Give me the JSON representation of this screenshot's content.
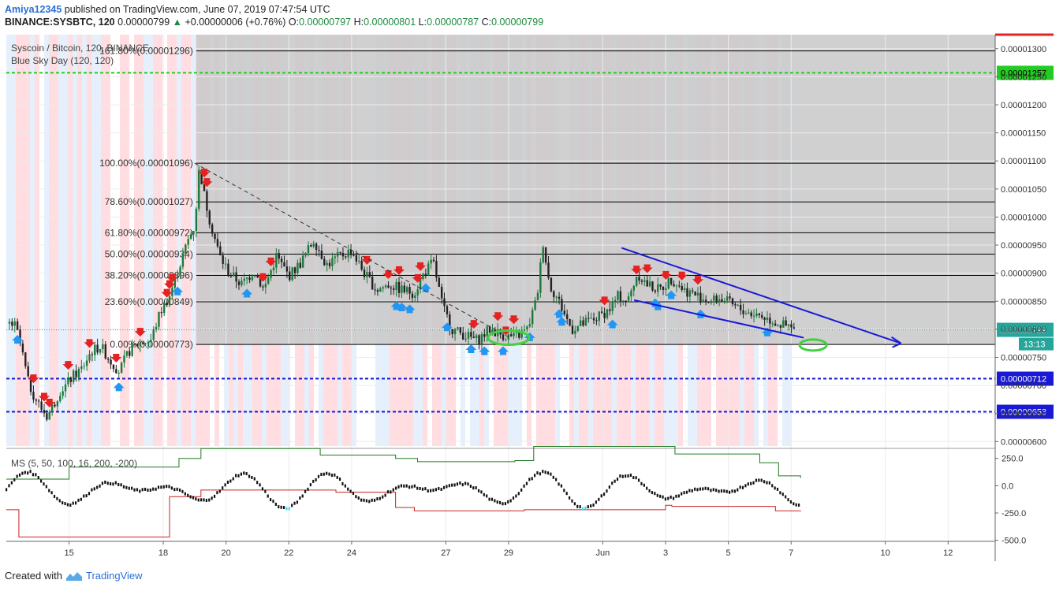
{
  "header": {
    "author": "Amiya12345",
    "published": "published on TradingView.com, June 07, 2019 07:47:54 UTC",
    "symbol": "BINANCE:SYSBTC, 120",
    "last": "0.00000799",
    "change": "+0.00000006 (+0.76%)",
    "o_label": "O:",
    "o": "0.00000797",
    "h_label": "H:",
    "h": "0.00000801",
    "l_label": "L:",
    "l": "0.00000787",
    "c_label": "C:",
    "c": "0.00000799"
  },
  "legend": {
    "title": "Syscoin / Bitcoin, 120, BINANCE",
    "indicator": "Blue Sky Day (120, 120)",
    "oscillator": "MS (5, 50, 100, 16, 200, -200)"
  },
  "footer": {
    "created_with": "Created with",
    "brand": "TradingView"
  },
  "colors": {
    "up_arrow": "#2196f3",
    "down_arrow": "#e52222",
    "fib_line": "#000000",
    "green_level": "#22cc22",
    "blue_level": "#1a1ad6",
    "trend": "#1a1ad6",
    "ellipse": "#3fd13f",
    "gray_zone": "#c8c8c8",
    "last_price": "#26a69a",
    "osc_upper": "#1f7a1f",
    "osc_lower": "#cc2222",
    "osc_signal": "#33ddee"
  },
  "chart_data": {
    "type": "candlestick",
    "price_axis": {
      "range": [
        5.92e-06,
        1.325e-05
      ],
      "ticks": [
        "0.00001300",
        "0.00001250",
        "0.00001200",
        "0.00001150",
        "0.00001100",
        "0.00001050",
        "0.00001000",
        "0.00000950",
        "0.00000900",
        "0.00000850",
        "0.00000800",
        "0.00000750",
        "0.00000700",
        "0.00000650",
        "0.00000600"
      ]
    },
    "date_axis": {
      "range_days": [
        0,
        31.5
      ],
      "ticks": [
        {
          "label": "15",
          "day": 2
        },
        {
          "label": "18",
          "day": 5
        },
        {
          "label": "20",
          "day": 7
        },
        {
          "label": "22",
          "day": 9
        },
        {
          "label": "24",
          "day": 11
        },
        {
          "label": "27",
          "day": 14
        },
        {
          "label": "29",
          "day": 16
        },
        {
          "label": "Jun",
          "day": 19
        },
        {
          "label": "3",
          "day": 21
        },
        {
          "label": "5",
          "day": 23
        },
        {
          "label": "7",
          "day": 25
        },
        {
          "label": "10",
          "day": 28
        },
        {
          "label": "12",
          "day": 30
        }
      ]
    },
    "fib_levels": [
      {
        "label": "161.80%(0.00001296)",
        "value": 1.296e-05
      },
      {
        "label": "100.00%(0.00001096)",
        "value": 1.096e-05
      },
      {
        "label": "78.60%(0.00001027)",
        "value": 1.027e-05
      },
      {
        "label": "61.80%(0.00000972)",
        "value": 9.72e-06
      },
      {
        "label": "50.00%(0.00000934)",
        "value": 9.34e-06
      },
      {
        "label": "38.20%(0.00000896)",
        "value": 8.96e-06
      },
      {
        "label": "23.60%(0.00000849)",
        "value": 8.49e-06
      },
      {
        "label": "0.00%(0.00000773)",
        "value": 7.73e-06
      }
    ],
    "horizontal_levels": [
      {
        "label": "0.00001257",
        "value": 1.257e-05,
        "style": "green"
      },
      {
        "label": "0.00000712",
        "value": 7.12e-06,
        "style": "blue"
      },
      {
        "label": "0.00000653",
        "value": 6.53e-06,
        "style": "blue"
      }
    ],
    "last_price": {
      "label": "0.00000799",
      "value": 7.99e-06
    },
    "countdown": "13:13",
    "price_path": [
      [
        0.1,
        8.1e-06
      ],
      [
        0.3,
        8.05e-06
      ],
      [
        0.5,
        7.6e-06
      ],
      [
        0.7,
        7.05e-06
      ],
      [
        0.9,
        6.8e-06
      ],
      [
        1.1,
        6.6e-06
      ],
      [
        1.3,
        6.45e-06
      ],
      [
        1.5,
        6.65e-06
      ],
      [
        1.7,
        6.9e-06
      ],
      [
        1.9,
        7e-06
      ],
      [
        2.1,
        7.15e-06
      ],
      [
        2.4,
        7.3e-06
      ],
      [
        2.7,
        7.6e-06
      ],
      [
        3.0,
        7.7e-06
      ],
      [
        3.3,
        7.45e-06
      ],
      [
        3.6,
        7.25e-06
      ],
      [
        3.9,
        7.6e-06
      ],
      [
        4.2,
        7.75e-06
      ],
      [
        4.6,
        7.8e-06
      ],
      [
        4.9,
        8.3e-06
      ],
      [
        5.2,
        8.6e-06
      ],
      [
        5.5,
        9.1e-06
      ],
      [
        5.8,
        9.6e-06
      ],
      [
        6.0,
        9.85e-06
      ],
      [
        6.15,
        1.09e-05
      ],
      [
        6.3,
        1.04e-05
      ],
      [
        6.5,
        9.9e-06
      ],
      [
        6.8,
        9.3e-06
      ],
      [
        7.1,
        9e-06
      ],
      [
        7.5,
        8.8e-06
      ],
      [
        7.9,
        9.05e-06
      ],
      [
        8.2,
        8.7e-06
      ],
      [
        8.6,
        9.3e-06
      ],
      [
        9.0,
        8.95e-06
      ],
      [
        9.4,
        9.2e-06
      ],
      [
        9.8,
        9.6e-06
      ],
      [
        10.2,
        9.15e-06
      ],
      [
        10.6,
        9.3e-06
      ],
      [
        11.0,
        9.4e-06
      ],
      [
        11.4,
        9e-06
      ],
      [
        11.8,
        8.7e-06
      ],
      [
        12.2,
        8.8e-06
      ],
      [
        12.6,
        8.7e-06
      ],
      [
        13.0,
        8.65e-06
      ],
      [
        13.3,
        9e-06
      ],
      [
        13.6,
        9.2e-06
      ],
      [
        13.9,
        8.4e-06
      ],
      [
        14.2,
        8e-06
      ],
      [
        14.6,
        7.9e-06
      ],
      [
        15.0,
        7.8e-06
      ],
      [
        15.4,
        8e-06
      ],
      [
        15.8,
        7.9e-06
      ],
      [
        16.2,
        7.85e-06
      ],
      [
        16.6,
        8e-06
      ],
      [
        16.9,
        8.55e-06
      ],
      [
        17.1,
        9.55e-06
      ],
      [
        17.3,
        8.8e-06
      ],
      [
        17.6,
        8.5e-06
      ],
      [
        18.0,
        8e-06
      ],
      [
        18.4,
        8.1e-06
      ],
      [
        18.8,
        8.2e-06
      ],
      [
        19.2,
        8.35e-06
      ],
      [
        19.5,
        8.6e-06
      ],
      [
        19.8,
        8.5e-06
      ],
      [
        20.1,
        9e-06
      ],
      [
        20.4,
        8.8e-06
      ],
      [
        20.8,
        8.7e-06
      ],
      [
        21.2,
        8.9e-06
      ],
      [
        21.6,
        8.7e-06
      ],
      [
        22.0,
        8.6e-06
      ],
      [
        22.4,
        8.5e-06
      ],
      [
        22.8,
        8.55e-06
      ],
      [
        23.2,
        8.4e-06
      ],
      [
        23.6,
        8.3e-06
      ],
      [
        24.0,
        8.25e-06
      ],
      [
        24.4,
        8.15e-06
      ],
      [
        24.8,
        8.05e-06
      ],
      [
        25.1,
        7.99e-06
      ]
    ],
    "trend_lines": [
      {
        "from": [
          19.6,
          9.45e-06
        ],
        "to": [
          28.5,
          7.75e-06
        ]
      },
      {
        "from": [
          20.0,
          8.52e-06
        ],
        "to": [
          25.4,
          7.85e-06
        ]
      }
    ],
    "dashed_line": {
      "from": [
        6.0,
        1.096e-05
      ],
      "to": [
        16.0,
        7.86e-06
      ]
    },
    "oscillator": {
      "range": [
        -510,
        320
      ],
      "ticks": [
        "250.0",
        "0.0",
        "-250.0",
        "-500.0"
      ],
      "upper_band": [
        [
          0,
          60
        ],
        [
          2,
          170
        ],
        [
          5.5,
          250
        ],
        [
          6.2,
          340
        ],
        [
          9.8,
          340
        ],
        [
          10,
          280
        ],
        [
          12.4,
          250
        ],
        [
          13.1,
          220
        ],
        [
          16.2,
          230
        ],
        [
          16.8,
          360
        ],
        [
          21,
          360
        ],
        [
          21.3,
          290
        ],
        [
          24,
          210
        ],
        [
          24.6,
          90
        ],
        [
          25.3,
          70
        ]
      ],
      "lower_band": [
        [
          0,
          -220
        ],
        [
          0.4,
          -470
        ],
        [
          5,
          -470
        ],
        [
          5.2,
          -100
        ],
        [
          6.2,
          -40
        ],
        [
          10.5,
          -60
        ],
        [
          12.4,
          -200
        ],
        [
          13,
          -230
        ],
        [
          16.5,
          -220
        ],
        [
          21,
          -180
        ],
        [
          21.2,
          -190
        ],
        [
          24.5,
          -230
        ],
        [
          25.3,
          -235
        ]
      ]
    }
  }
}
